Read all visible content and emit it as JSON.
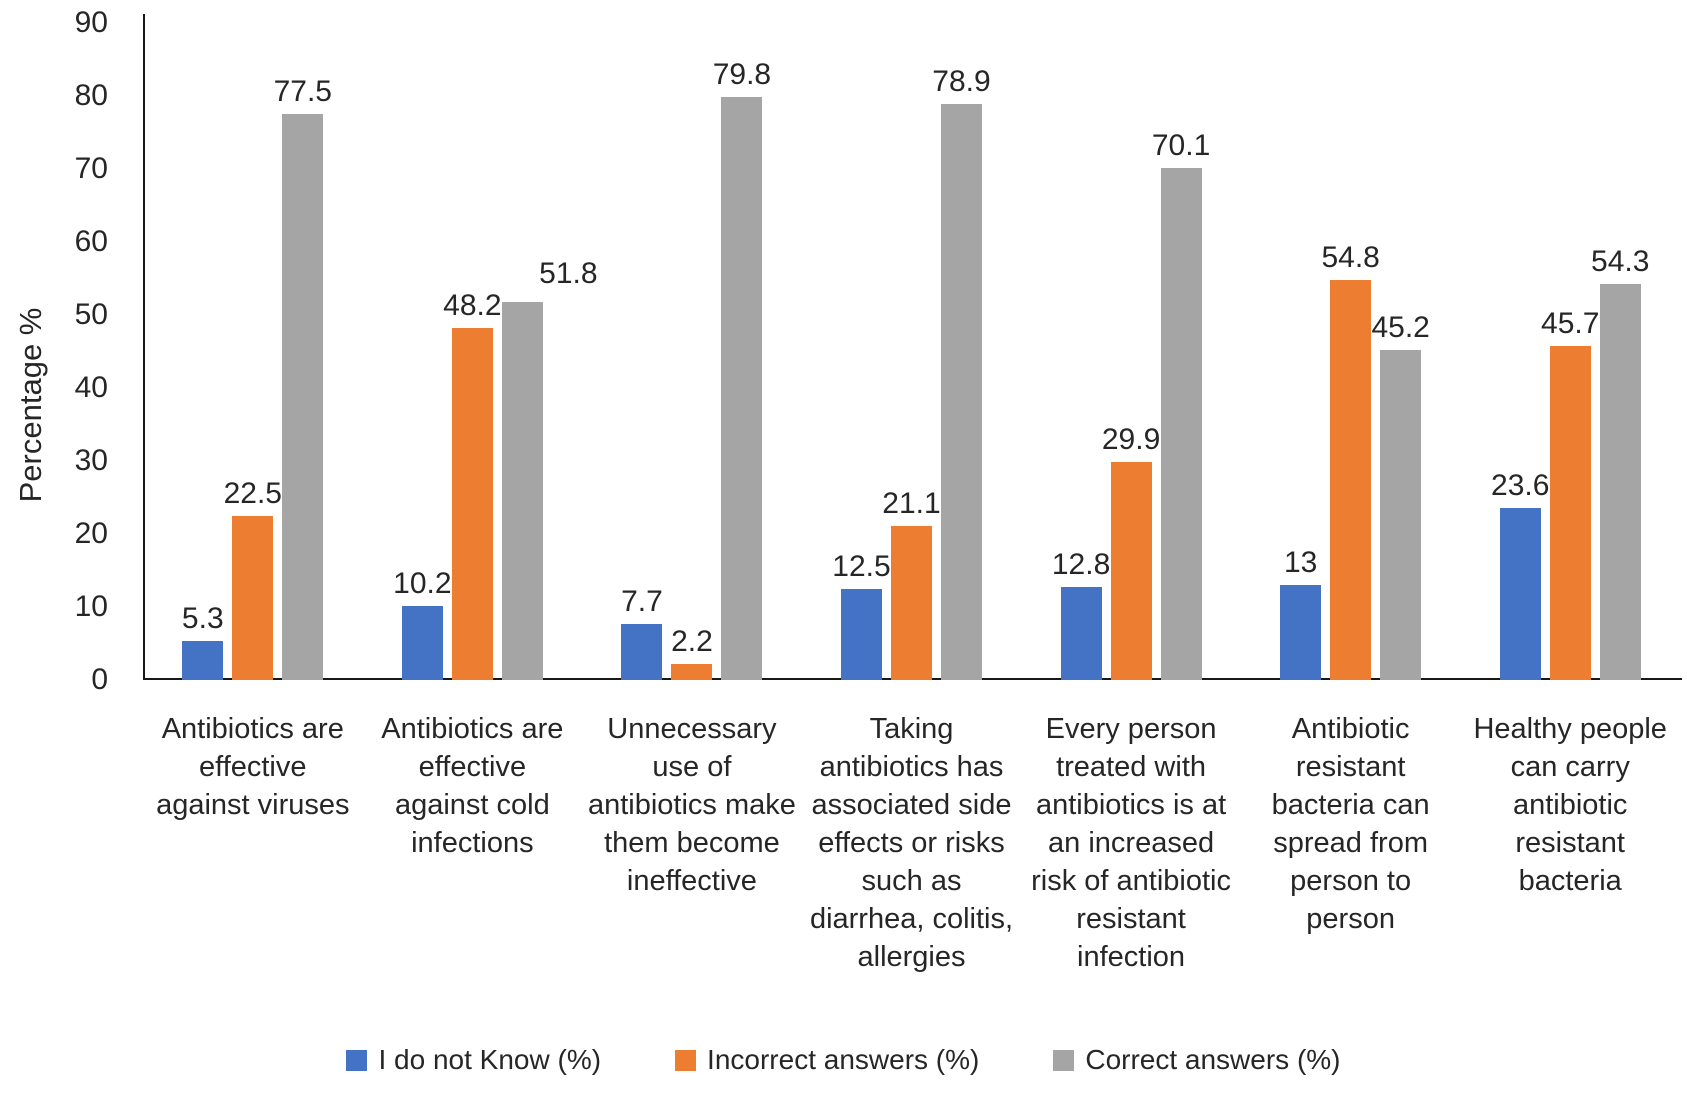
{
  "chart_data": {
    "type": "bar",
    "title": "",
    "xlabel": "",
    "ylabel": "Percentage %",
    "ylim": [
      0,
      90
    ],
    "y_ticks": [
      "0",
      "10",
      "20",
      "30",
      "40",
      "50",
      "60",
      "70",
      "80",
      "90"
    ],
    "grid": false,
    "legend_position": "bottom",
    "value_labels_shown": true,
    "categories": [
      "Antibiotics are effective against viruses",
      "Antibiotics are effective against cold infections",
      "Unnecessary use of antibiotics make them become ineffective",
      "Taking antibiotics has associated side effects or risks such as diarrhea, colitis, allergies",
      "Every person treated with antibiotics is at an increased risk of antibiotic resistant infection",
      "Antibiotic resistant bacteria can spread from person to person",
      "Healthy people can carry antibiotic resistant bacteria"
    ],
    "series": [
      {
        "name": "I do not Know (%)",
        "color": "#4472C4",
        "values": [
          5.3,
          10.2,
          7.7,
          12.5,
          12.8,
          13,
          23.6
        ]
      },
      {
        "name": "Incorrect answers (%)",
        "color": "#ED7D31",
        "values": [
          22.5,
          48.2,
          2.2,
          21.1,
          29.9,
          54.8,
          45.7
        ]
      },
      {
        "name": "Correct answers (%)",
        "color": "#A5A5A5",
        "values": [
          77.5,
          51.8,
          79.8,
          78.9,
          70.1,
          45.2,
          54.3
        ]
      }
    ],
    "colors": {
      "axis_line": "#181818",
      "text": "#262626"
    }
  }
}
